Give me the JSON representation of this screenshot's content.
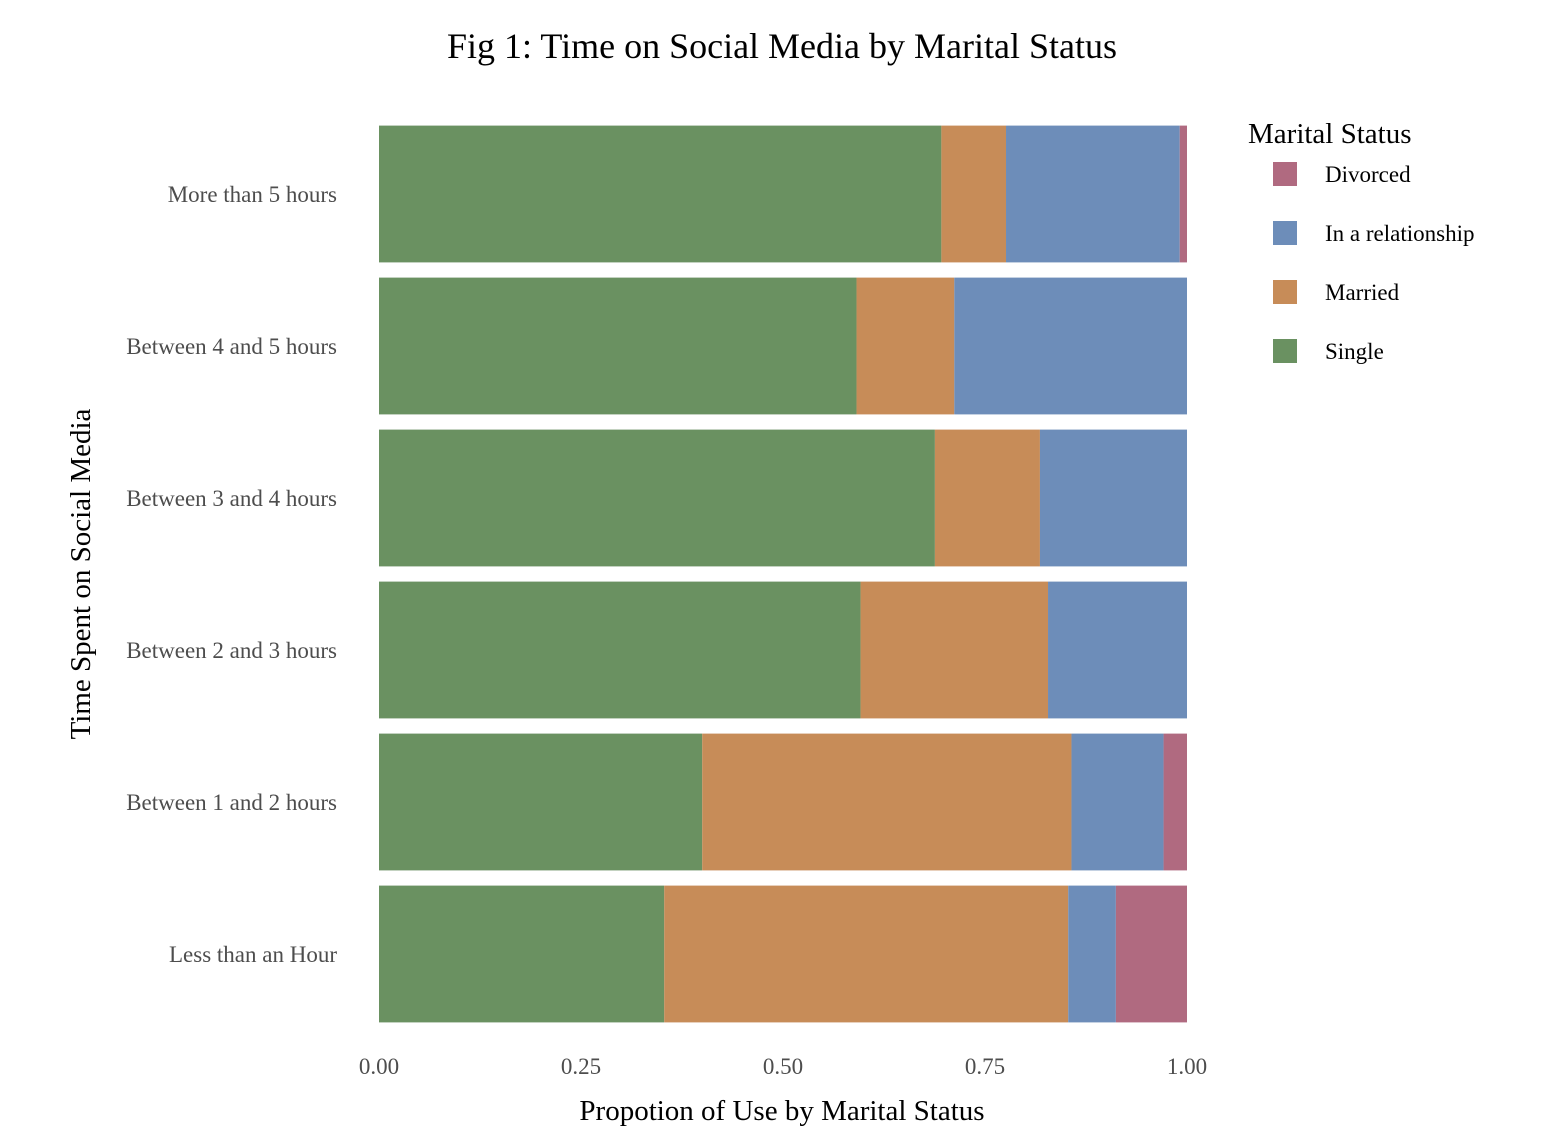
{
  "chart_data": {
    "type": "bar",
    "orientation": "horizontal",
    "stacked": true,
    "normalized": true,
    "title": "Fig 1: Time on Social Media by Marital Status",
    "xlabel": "Propotion of Use by Marital Status",
    "ylabel": "Time Spent on Social Media",
    "xlim": [
      0,
      1
    ],
    "xticks": [
      "0.00",
      "0.25",
      "0.50",
      "0.75",
      "1.00"
    ],
    "xtick_values": [
      0,
      0.25,
      0.5,
      0.75,
      1.0
    ],
    "grid": false,
    "legend_title": "Marital Status",
    "legend_position": "right",
    "categories": [
      "Less than an Hour",
      "Between 1 and 2 hours",
      "Between 2 and 3 hours",
      "Between 3 and 4 hours",
      "Between 4 and 5 hours",
      "More than 5 hours"
    ],
    "stack_order": [
      "Single",
      "Married",
      "In a relationship",
      "Divorced"
    ],
    "legend_order": [
      "Divorced",
      "In a relationship",
      "Married",
      "Single"
    ],
    "series": [
      {
        "name": "Single",
        "color": "#6a9161",
        "values": [
          0.353,
          0.4,
          0.596,
          0.688,
          0.591,
          0.696
        ]
      },
      {
        "name": "Married",
        "color": "#c78c58",
        "values": [
          0.5,
          0.457,
          0.232,
          0.13,
          0.121,
          0.08
        ]
      },
      {
        "name": "In a relationship",
        "color": "#6d8db9",
        "values": [
          0.059,
          0.114,
          0.172,
          0.182,
          0.288,
          0.215
        ]
      },
      {
        "name": "Divorced",
        "color": "#b06a80",
        "values": [
          0.088,
          0.029,
          0.0,
          0.0,
          0.0,
          0.009
        ]
      }
    ]
  }
}
